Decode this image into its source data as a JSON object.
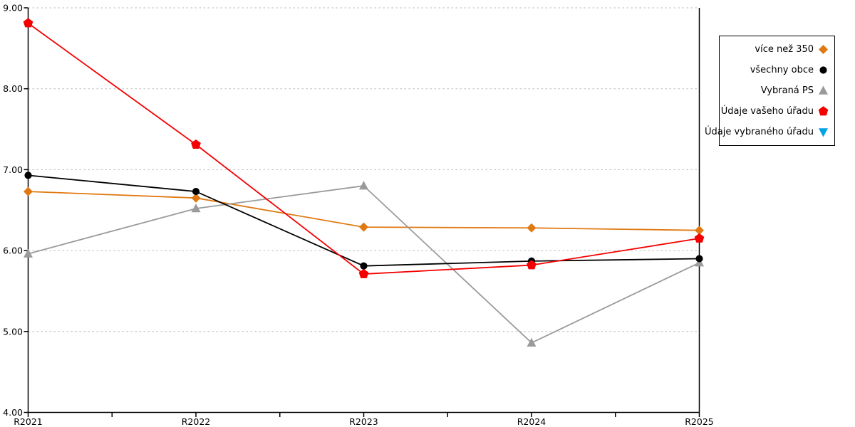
{
  "chart_data": {
    "type": "line",
    "title": "",
    "xlabel": "",
    "ylabel": "",
    "x": [
      "R2021",
      "R2022",
      "R2023",
      "R2024",
      "R2025"
    ],
    "series": [
      {
        "name": "více než 350",
        "color": "#E07912",
        "marker": "diamond",
        "values": [
          6.73,
          6.65,
          6.29,
          6.28,
          6.25
        ]
      },
      {
        "name": "všechny obce",
        "color": "#000000",
        "marker": "circle",
        "values": [
          6.93,
          6.73,
          5.81,
          5.87,
          5.9
        ]
      },
      {
        "name": "Vybraná PS",
        "color": "#9A9A9A",
        "marker": "triangle-up",
        "values": [
          5.96,
          6.52,
          6.8,
          4.86,
          5.85
        ]
      },
      {
        "name": "Údaje vašeho úřadu",
        "color": "#F40000",
        "marker": "pentagon",
        "values": [
          8.81,
          7.31,
          5.71,
          5.82,
          6.15
        ]
      },
      {
        "name": "Údaje vybraného úřadu",
        "color": "#00A2E8",
        "marker": "triangle-down",
        "values": []
      }
    ],
    "ylim": [
      4,
      9
    ],
    "ytick_labels": [
      "4.00",
      "5.00",
      "6.00",
      "7.00",
      "8.00",
      "9.00"
    ],
    "grid": "horizontal-dotted",
    "legend_position": "outside-top-right"
  },
  "colors": {
    "background": "#FFFFFF",
    "axis": "#000000",
    "grid": "#BBBBBB",
    "tick_text": "#000000"
  }
}
